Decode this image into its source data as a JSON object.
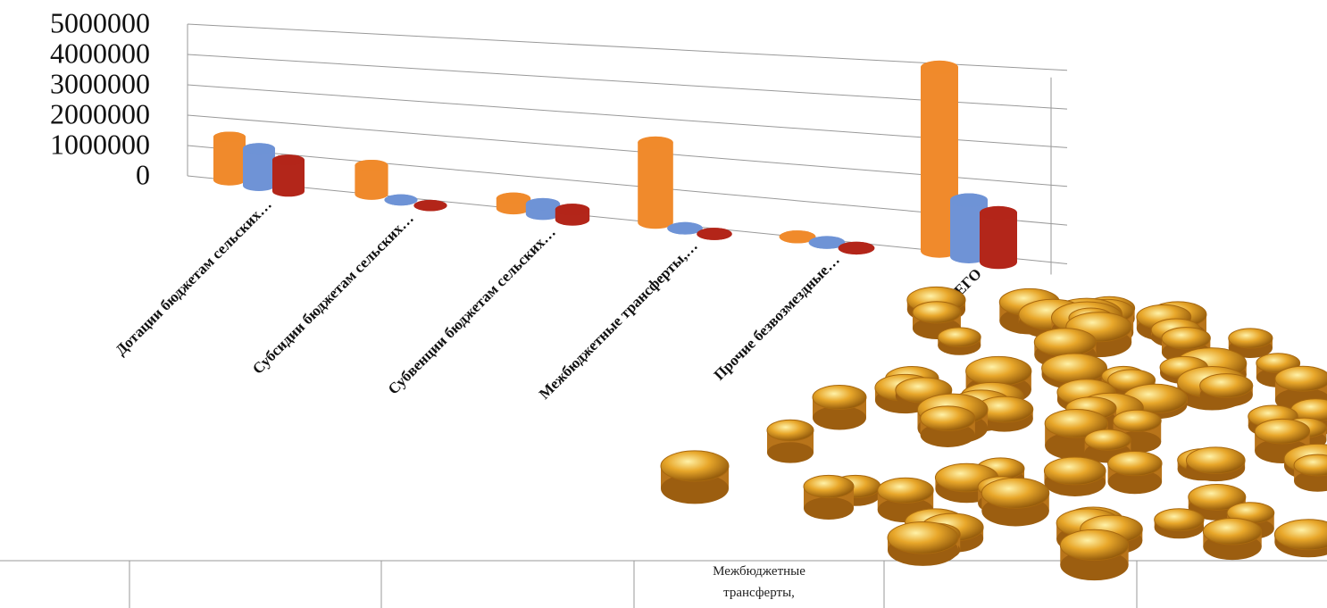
{
  "chart_data": {
    "type": "bar3d",
    "categories": [
      "Дотации бюджетам сельских…",
      "Субсидии бюджетам сельских…",
      "Субвенции бюджетам сельских…",
      "Межбюджетные трансферты,…",
      "Прочие безвозмездные…",
      "ВСЕГО"
    ],
    "series": [
      {
        "color": "#f08a2c",
        "values": [
          1400000,
          900000,
          300000,
          2300000,
          0,
          4900000
        ]
      },
      {
        "color": "#6f93d6",
        "values": [
          1200000,
          0,
          300000,
          0,
          0,
          1500000
        ]
      },
      {
        "color": "#b3261a",
        "values": [
          1000000,
          0,
          300000,
          0,
          0,
          1300000
        ]
      }
    ],
    "ylim": [
      0,
      5000000
    ],
    "yticks": [
      0,
      1000000,
      2000000,
      3000000,
      4000000,
      5000000
    ],
    "grid": true
  },
  "table": {
    "cell_text": [
      "Межбюджетные",
      "трансферты,"
    ]
  }
}
